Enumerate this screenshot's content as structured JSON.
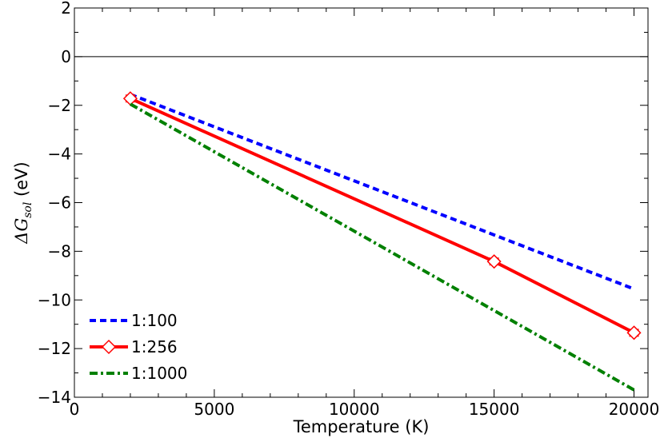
{
  "chart_data": {
    "type": "line",
    "xlabel": "Temperature (K)",
    "ylabel": {
      "symbol": "ΔG",
      "subscript": "sol",
      "unit": " (eV)"
    },
    "xlim": [
      0,
      20500
    ],
    "ylim": [
      -14,
      2
    ],
    "xticks": [
      0,
      5000,
      10000,
      15000,
      20000
    ],
    "xtick_labels": [
      "0",
      "5000",
      "10000",
      "15000",
      "20000"
    ],
    "yticks": [
      -14,
      -12,
      -10,
      -8,
      -6,
      -4,
      -2,
      0,
      2
    ],
    "ytick_labels": [
      "−14",
      "−12",
      "−10",
      "−8",
      "−6",
      "−4",
      "−2",
      "0",
      "2"
    ],
    "reference_line_y": 0,
    "legend_position": "lower-left",
    "series": [
      {
        "name": "1:100",
        "color": "#0000ff",
        "style": "dashed",
        "marker": "none",
        "x": [
          2000,
          20000
        ],
        "y": [
          -1.55,
          -9.55
        ]
      },
      {
        "name": "1:256",
        "color": "#ff0000",
        "style": "solid",
        "marker": "diamond",
        "x": [
          2000,
          15000,
          20000
        ],
        "y": [
          -1.72,
          -8.42,
          -11.35
        ],
        "error_x": [
          150,
          150,
          150
        ]
      },
      {
        "name": "1:1000",
        "color": "#008000",
        "style": "dashdot",
        "marker": "none",
        "x": [
          2000,
          20000
        ],
        "y": [
          -1.95,
          -13.7
        ]
      }
    ]
  }
}
